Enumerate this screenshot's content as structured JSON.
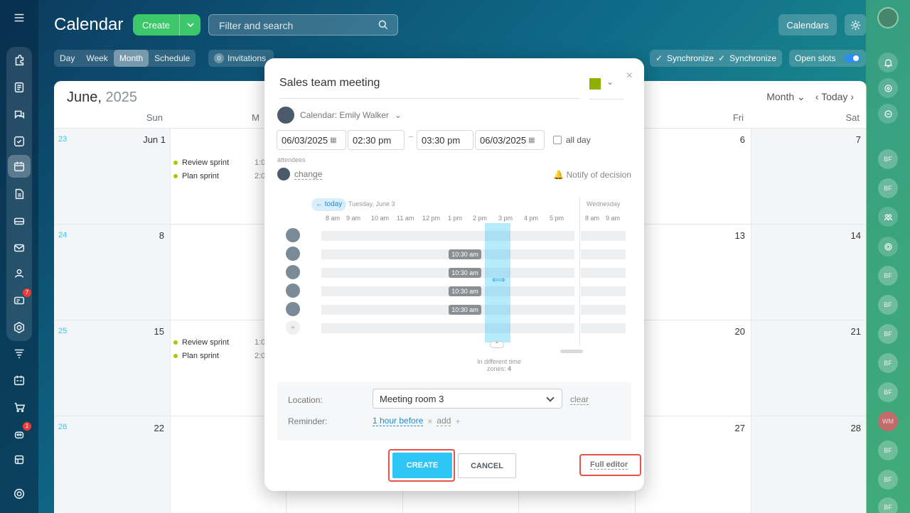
{
  "header": {
    "title": "Calendar",
    "create_label": "Create",
    "search_placeholder": "Filter and search",
    "calendars_label": "Calendars"
  },
  "views": {
    "items": [
      "Day",
      "Week",
      "Month",
      "Schedule"
    ],
    "active": "Month"
  },
  "invitations": {
    "count": "0",
    "label": "Invitations"
  },
  "sync": {
    "label1": "Synchronize",
    "label2": "Synchronize"
  },
  "open_slots": {
    "label": "Open slots",
    "enabled": true
  },
  "calendar": {
    "month": "June,",
    "year": "2025",
    "mode": "Month",
    "today_label": "Today",
    "weekdays": [
      "Sun",
      "M",
      "Fri",
      "Sat"
    ],
    "weeks": [
      {
        "num": "23",
        "days": [
          "Jun 1",
          "6",
          "7"
        ]
      },
      {
        "num": "24",
        "days": [
          "8",
          "13",
          "14"
        ]
      },
      {
        "num": "25",
        "days": [
          "15",
          "20",
          "21"
        ]
      },
      {
        "num": "26",
        "days": [
          "22",
          "27",
          "28"
        ]
      }
    ],
    "events_w1": [
      {
        "title": "Review sprint",
        "time": "1:0"
      },
      {
        "title": "Plan sprint",
        "time": "2:0"
      }
    ],
    "events_w3": [
      {
        "title": "Review sprint",
        "time": "1:0"
      },
      {
        "title": "Plan sprint",
        "time": "2:0"
      }
    ]
  },
  "popup": {
    "title": "Sales team meeting",
    "color": "#8fb000",
    "calendar_label": "Calendar: Emily Walker",
    "start_date": "06/03/2025",
    "start_time": "02:30 pm",
    "end_time": "03:30 pm",
    "end_date": "06/03/2025",
    "allday_label": "all day",
    "attendees_label": "attendees",
    "change_label": "change",
    "notify_label": "Notify of decision",
    "timeline": {
      "today_label": "← today",
      "date1": "Tuesday, June 3",
      "date2": "Wednesday",
      "hours": [
        "8 am",
        "9 am",
        "10 am",
        "11 am",
        "12 pm",
        "1 pm",
        "2 pm",
        "3 pm",
        "4 pm",
        "5 pm"
      ],
      "hours2": [
        "8 am",
        "9 am"
      ],
      "busy": [
        "10:30 am",
        "10:30 am",
        "10:30 am",
        "10:30 am"
      ],
      "tz_label": "In different time zones:",
      "tz_count": "4"
    },
    "location_label": "Location:",
    "location_value": "Meeting room 3",
    "clear_label": "clear",
    "reminder_label": "Reminder:",
    "reminder_value": "1 hour before",
    "add_label": "add",
    "create_btn": "CREATE",
    "cancel_btn": "CANCEL",
    "full_editor": "Full editor"
  },
  "rightbar": {
    "avatars": [
      "BF",
      "BF",
      "BF",
      "BF",
      "BF",
      "BF",
      "BF",
      "WM",
      "BF",
      "BF",
      "BF"
    ]
  },
  "leftbar": {
    "badges": [
      "7",
      "1"
    ]
  }
}
